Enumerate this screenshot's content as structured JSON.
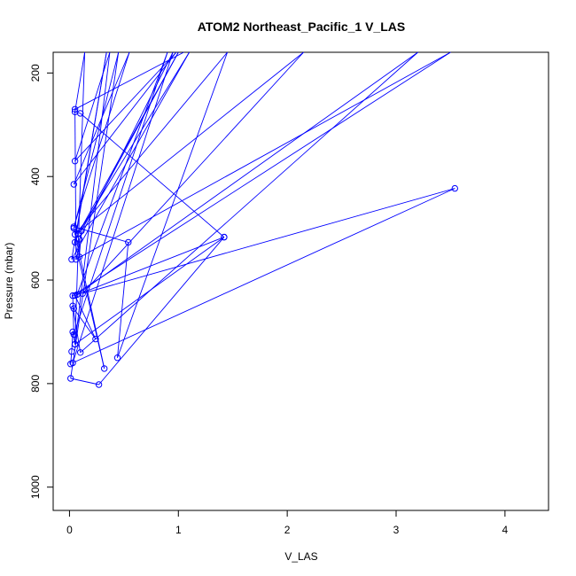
{
  "chart_data": {
    "type": "line",
    "title": "ATOM2 Northeast_Pacific_1 V_LAS",
    "xlabel": "V_LAS",
    "ylabel": "Pressure (mbar)",
    "xlim": [
      -0.15,
      4.4
    ],
    "ylim": [
      1045,
      160
    ],
    "y_reversed": true,
    "x_ticks": [
      0,
      1,
      2,
      3,
      4
    ],
    "y_ticks": [
      200,
      400,
      600,
      800,
      1000
    ],
    "grid": false,
    "line_color": "#0000ff",
    "series": [
      {
        "marker": "open-circle",
        "points": [
          [
            0.01,
            762
          ],
          [
            0.02,
            738
          ],
          [
            0.03,
            700
          ],
          [
            0.05,
            724
          ],
          [
            0.14,
            160
          ],
          [
            0.05,
            275
          ],
          [
            0.1,
            278
          ],
          [
            1.42,
            517
          ],
          [
            0.05,
            724
          ],
          [
            0.37,
            160
          ],
          [
            0.05,
            370
          ],
          [
            0.98,
            160
          ],
          [
            0.04,
            415
          ],
          [
            0.55,
            160
          ],
          [
            0.04,
            497
          ],
          [
            0.54,
            527
          ],
          [
            0.44,
            750
          ],
          [
            1.45,
            160
          ],
          [
            0.05,
            512
          ],
          [
            2.15,
            160
          ],
          [
            0.12,
            626
          ],
          [
            3.54,
            423
          ],
          [
            0.03,
            760
          ],
          [
            0.95,
            160
          ],
          [
            0.09,
            521
          ],
          [
            0.09,
            555
          ],
          [
            0.11,
            505
          ],
          [
            1.0,
            160
          ],
          [
            0.08,
            510
          ],
          [
            1.1,
            160
          ],
          [
            0.02,
            560
          ],
          [
            0.34,
            160
          ],
          [
            0.05,
            527
          ],
          [
            0.32,
            771
          ],
          [
            0.04,
            500
          ],
          [
            0.45,
            160
          ],
          [
            0.01,
            790
          ],
          [
            0.27,
            802
          ],
          [
            1.42,
            517
          ],
          [
            0.05,
            630
          ],
          [
            0.24,
            714
          ],
          [
            0.04,
            655
          ],
          [
            0.03,
            650
          ],
          [
            0.1,
            740
          ],
          [
            3.2,
            160
          ],
          [
            0.07,
            628
          ],
          [
            0.9,
            160
          ],
          [
            0.04,
            705
          ],
          [
            0.03,
            630
          ],
          [
            3.5,
            160
          ],
          [
            0.06,
            560
          ],
          [
            0.05,
            270
          ],
          [
            1.05,
            160
          ]
        ]
      }
    ]
  }
}
